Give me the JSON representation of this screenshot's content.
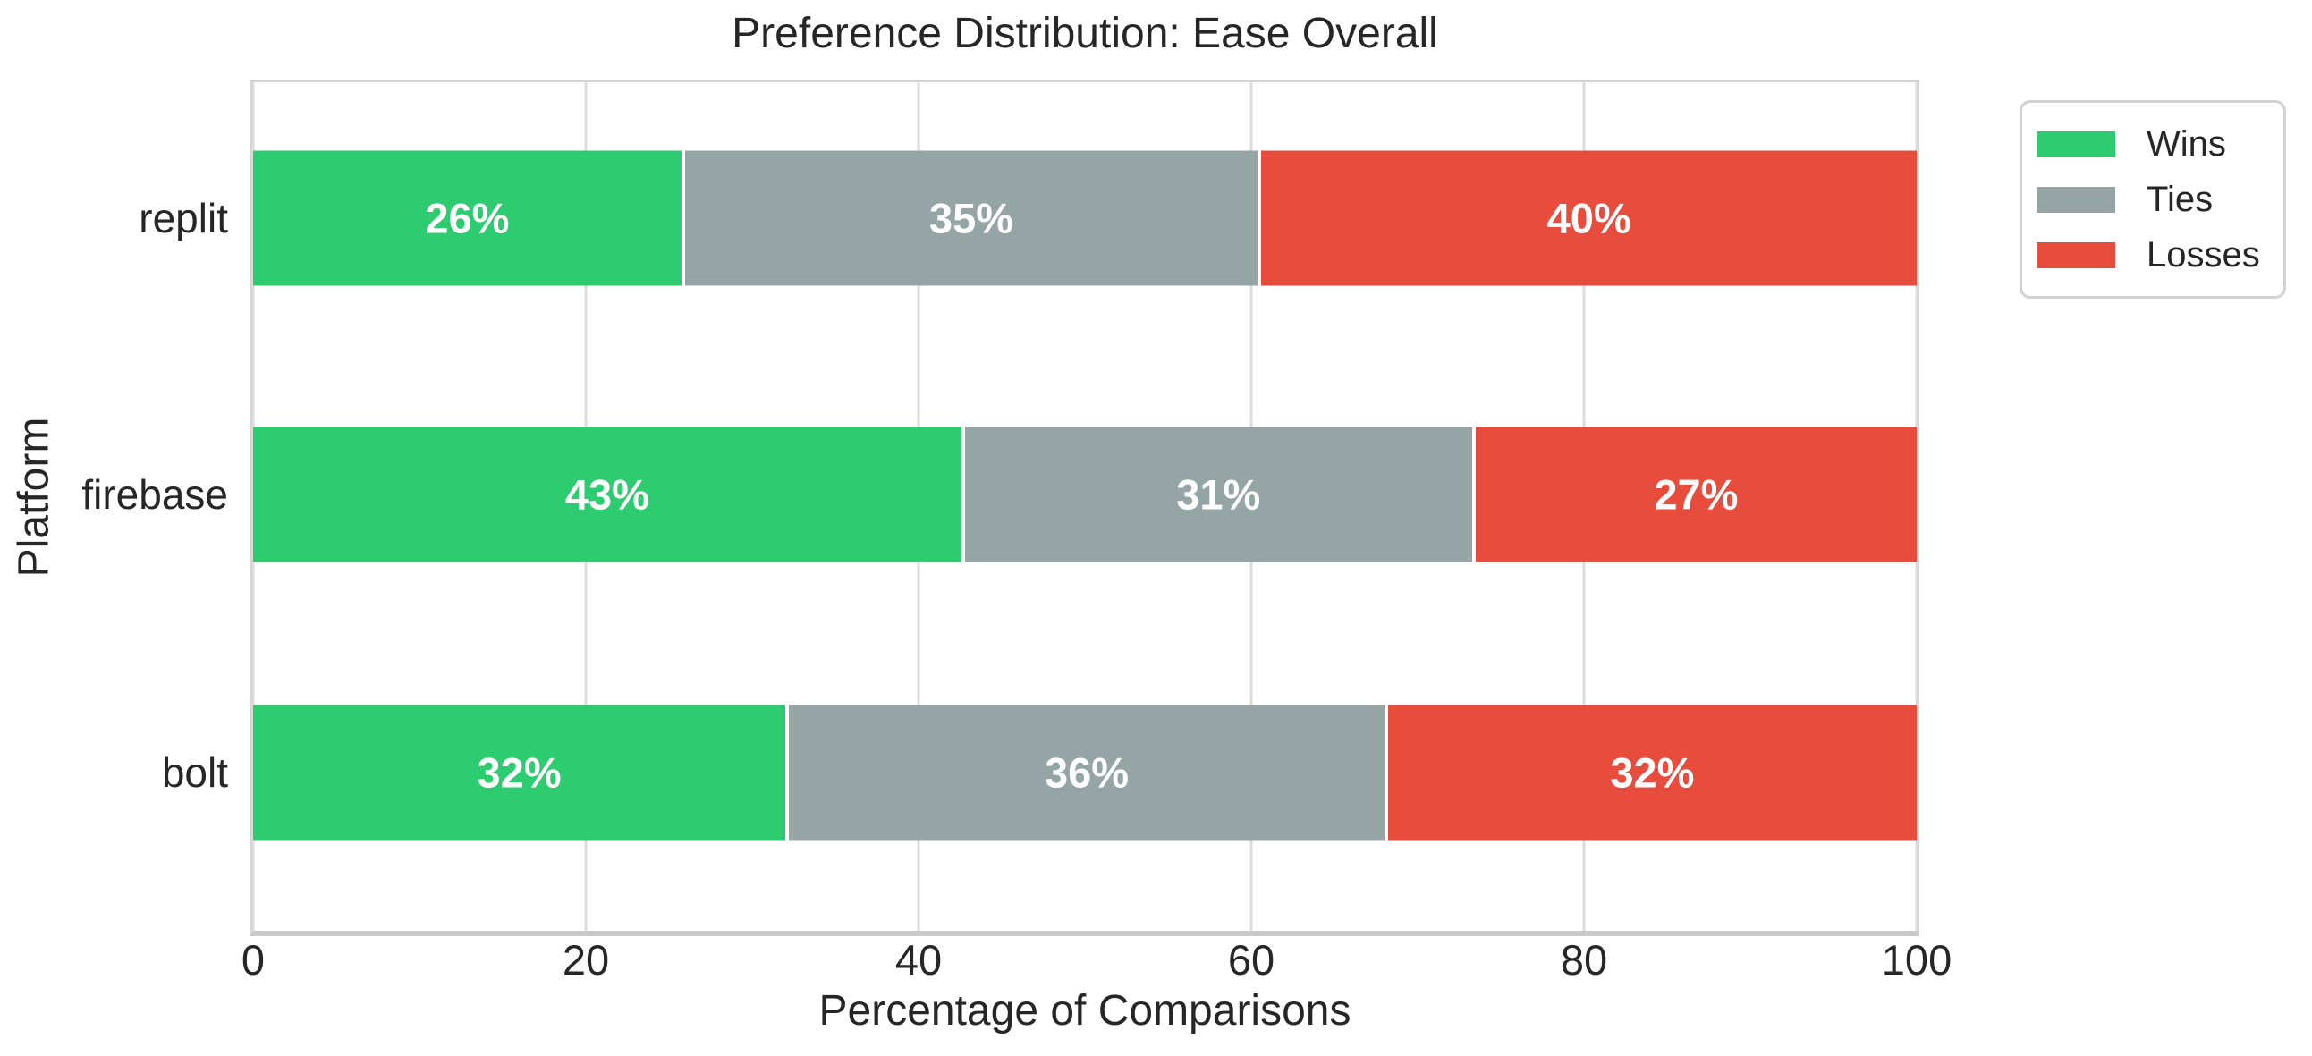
{
  "chart_data": {
    "type": "bar",
    "orientation": "horizontal",
    "stacked": true,
    "title": "Preference Distribution: Ease Overall",
    "xlabel": "Percentage of Comparisons",
    "ylabel": "Platform",
    "categories": [
      "replit",
      "firebase",
      "bolt"
    ],
    "series": [
      {
        "name": "Wins",
        "color": "#2ecc71",
        "values": [
          26,
          43,
          32
        ],
        "labels": [
          "26%",
          "43%",
          "32%"
        ]
      },
      {
        "name": "Ties",
        "color": "#95a5a6",
        "values": [
          35,
          31,
          36
        ],
        "labels": [
          "35%",
          "31%",
          "36%"
        ]
      },
      {
        "name": "Losses",
        "color": "#e74c3c",
        "values": [
          40,
          27,
          32
        ],
        "labels": [
          "40%",
          "27%",
          "32%"
        ]
      }
    ],
    "xlim": [
      0,
      100
    ],
    "xticks": [
      0,
      20,
      40,
      60,
      80,
      100
    ],
    "xtick_labels": [
      "0",
      "20",
      "40",
      "60",
      "80",
      "100"
    ],
    "grid": "vertical gridlines on",
    "legend": {
      "position": "upper-right outside plot",
      "labels": [
        "Wins",
        "Ties",
        "Losses"
      ]
    },
    "colors": {
      "wins": "#2ecc71",
      "ties": "#95a5a6",
      "losses": "#e74c3c",
      "gridline": "#dcdcdc",
      "bar_label_text": "#ffffff",
      "text": "#262626"
    }
  }
}
